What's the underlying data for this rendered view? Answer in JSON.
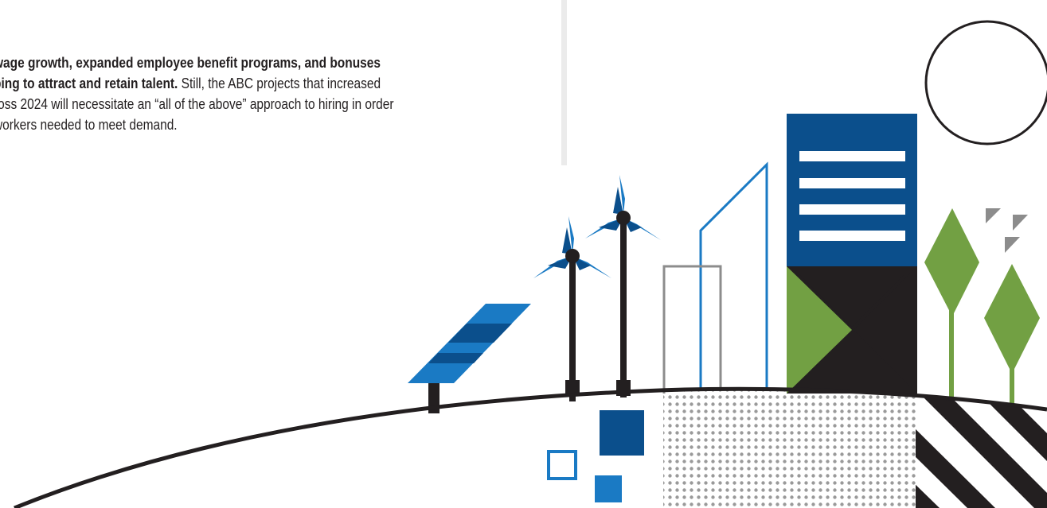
{
  "body_text": {
    "line1_bold": "wage growth, expanded employee benefit programs, and bonuses",
    "line2_bold": "ping to attract and retain talent.",
    "line2_regular": " Still, the ABC projects that increased",
    "line3": "ross 2024 will necessitate an “all of the above” approach to hiring in order",
    "line4": "workers needed to meet demand."
  },
  "colors": {
    "text": "#231f20",
    "divider": "#ebebeb",
    "dark_blue": "#0b4f8c",
    "light_blue": "#1a7ac4",
    "green": "#72a043",
    "black": "#231f20",
    "gray": "#8c8c8c"
  }
}
